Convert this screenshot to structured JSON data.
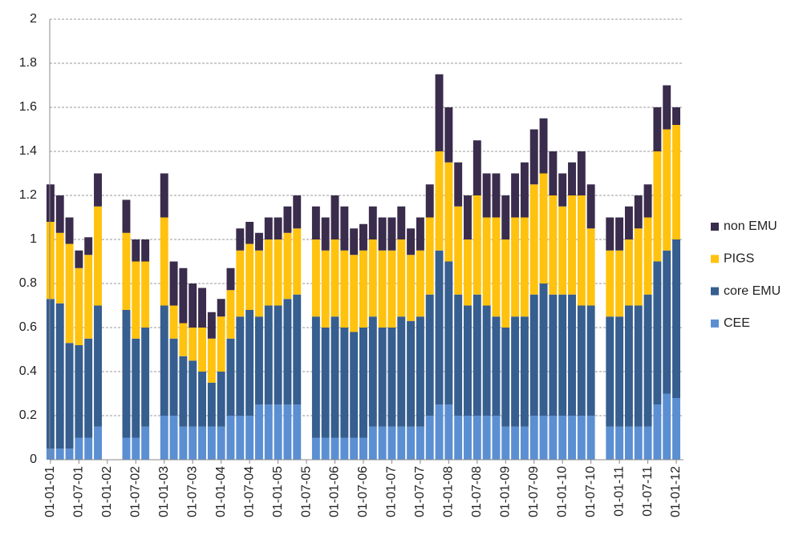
{
  "chart_data": {
    "type": "stacked-bar",
    "categories": [
      "01-01-01",
      null,
      null,
      "01-07-01",
      null,
      null,
      "01-01-02",
      null,
      null,
      "01-07-02",
      null,
      null,
      "01-01-03",
      null,
      null,
      "01-07-03",
      null,
      null,
      "01-01-04",
      null,
      null,
      "01-07-04",
      null,
      null,
      "01-01-05",
      null,
      null,
      "01-07-05",
      null,
      null,
      "01-01-06",
      null,
      null,
      "01-07-06",
      null,
      null,
      "01-01-07",
      null,
      null,
      "01-07-07",
      null,
      null,
      "01-01-08",
      null,
      null,
      "01-07-08",
      null,
      null,
      "01-01-09",
      null,
      null,
      "01-07-09",
      null,
      null,
      "01-01-10",
      null,
      null,
      "01-07-10",
      null,
      null,
      "01-01-11",
      null,
      null,
      "01-07-11",
      null,
      null,
      "01-01-12"
    ],
    "series": [
      {
        "name": "CEE",
        "color": "#5b8fd2",
        "values": [
          0.05,
          0.05,
          0.05,
          0.1,
          0.1,
          0.15,
          null,
          null,
          0.1,
          0.1,
          0.15,
          null,
          0.2,
          0.2,
          0.15,
          0.15,
          0.15,
          0.15,
          0.15,
          0.2,
          0.2,
          0.2,
          0.25,
          0.25,
          0.25,
          0.25,
          0.25,
          null,
          0.1,
          0.1,
          0.1,
          0.1,
          0.1,
          0.1,
          0.15,
          0.15,
          0.15,
          0.15,
          0.15,
          0.15,
          0.2,
          0.25,
          0.25,
          0.2,
          0.2,
          0.2,
          0.2,
          0.2,
          0.15,
          0.15,
          0.15,
          0.2,
          0.2,
          0.2,
          0.2,
          0.2,
          0.2,
          0.2,
          null,
          0.15,
          0.15,
          0.15,
          0.15,
          0.15,
          0.25,
          0.3,
          0.28
        ]
      },
      {
        "name": "core EMU",
        "color": "#365e8f",
        "values": [
          0.68,
          0.66,
          0.48,
          0.42,
          0.45,
          0.55,
          null,
          null,
          0.58,
          0.45,
          0.45,
          null,
          0.5,
          0.35,
          0.32,
          0.3,
          0.25,
          0.2,
          0.25,
          0.35,
          0.45,
          0.48,
          0.4,
          0.45,
          0.45,
          0.48,
          0.5,
          null,
          0.55,
          0.5,
          0.55,
          0.5,
          0.48,
          0.5,
          0.5,
          0.45,
          0.45,
          0.5,
          0.48,
          0.5,
          0.55,
          0.7,
          0.65,
          0.55,
          0.5,
          0.55,
          0.5,
          0.45,
          0.45,
          0.5,
          0.5,
          0.55,
          0.6,
          0.55,
          0.55,
          0.55,
          0.5,
          0.5,
          null,
          0.5,
          0.5,
          0.55,
          0.55,
          0.6,
          0.65,
          0.65,
          0.72
        ]
      },
      {
        "name": "PIGS",
        "color": "#ffc20e",
        "values": [
          0.35,
          0.32,
          0.45,
          0.35,
          0.38,
          0.45,
          null,
          null,
          0.35,
          0.35,
          0.3,
          null,
          0.4,
          0.15,
          0.15,
          0.15,
          0.2,
          0.2,
          0.25,
          0.22,
          0.3,
          0.3,
          0.3,
          0.3,
          0.3,
          0.3,
          0.3,
          null,
          0.35,
          0.35,
          0.35,
          0.35,
          0.35,
          0.35,
          0.35,
          0.35,
          0.35,
          0.35,
          0.3,
          0.3,
          0.35,
          0.45,
          0.45,
          0.4,
          0.3,
          0.45,
          0.4,
          0.45,
          0.4,
          0.45,
          0.45,
          0.5,
          0.5,
          0.45,
          0.4,
          0.45,
          0.5,
          0.35,
          null,
          0.3,
          0.3,
          0.3,
          0.35,
          0.35,
          0.5,
          0.55,
          0.52
        ]
      },
      {
        "name": "non EMU",
        "color": "#3a2c4c",
        "values": [
          0.17,
          0.17,
          0.12,
          0.08,
          0.08,
          0.15,
          null,
          null,
          0.15,
          0.1,
          0.1,
          null,
          0.2,
          0.2,
          0.25,
          0.2,
          0.18,
          0.12,
          0.08,
          0.1,
          0.1,
          0.1,
          0.08,
          0.1,
          0.1,
          0.12,
          0.15,
          null,
          0.15,
          0.15,
          0.2,
          0.2,
          0.12,
          0.12,
          0.15,
          0.15,
          0.15,
          0.15,
          0.12,
          0.15,
          0.15,
          0.35,
          0.25,
          0.2,
          0.2,
          0.25,
          0.2,
          0.2,
          0.2,
          0.2,
          0.25,
          0.25,
          0.25,
          0.2,
          0.15,
          0.15,
          0.2,
          0.2,
          null,
          0.15,
          0.15,
          0.15,
          0.15,
          0.15,
          0.2,
          0.2,
          0.08
        ]
      }
    ],
    "ylim": [
      0,
      2
    ],
    "yticks": [
      0,
      0.2,
      0.4,
      0.6,
      0.8,
      1,
      1.2,
      1.4,
      1.6,
      1.8,
      2
    ],
    "grid": true,
    "legend": "right"
  }
}
